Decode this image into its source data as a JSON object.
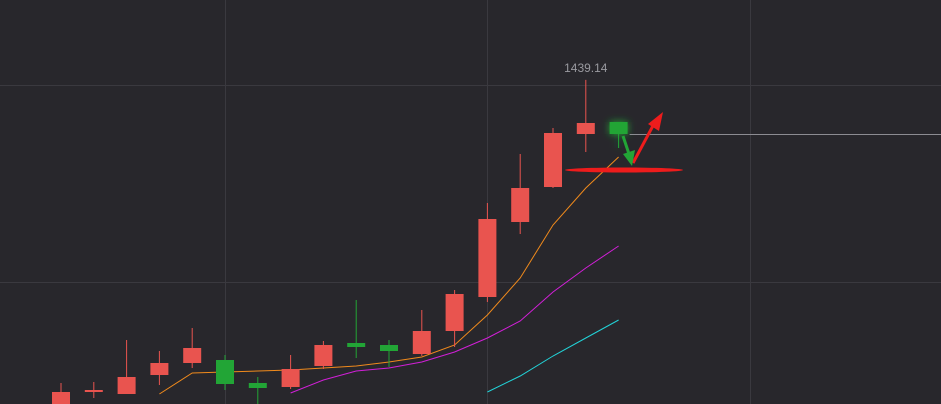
{
  "chart_data": {
    "type": "candlestick",
    "open": [
      1115,
      1127,
      1125,
      1144,
      1156,
      1159,
      1136,
      1132,
      1153,
      1176,
      1174,
      1165,
      1188,
      1222,
      1297,
      1332,
      1385,
      1397
    ],
    "high": [
      1136,
      1137,
      1179,
      1168,
      1191,
      1164,
      1142,
      1164,
      1178,
      1219,
      1179,
      1209,
      1229,
      1316,
      1365,
      1391,
      1439.14,
      1397
    ],
    "low": [
      1115,
      1121,
      1125,
      1134,
      1151,
      1129,
      1115,
      1130,
      1150,
      1161,
      1152,
      1163,
      1172,
      1217,
      1285,
      1331,
      1367,
      1371
    ],
    "close": [
      1127,
      1129,
      1142,
      1156,
      1171,
      1135,
      1131,
      1150,
      1174,
      1172,
      1168,
      1188,
      1225,
      1300,
      1331,
      1386,
      1396,
      1385
    ],
    "up_color": "#e9544f",
    "down_color": "#22a536",
    "lines": [
      {
        "color": "#f08a1c",
        "values": [
          null,
          null,
          null,
          1125,
          1146,
          1147,
          1148,
          1149,
          1151,
          1153,
          1157,
          1162,
          1174,
          1204,
          1241,
          1294,
          1331,
          1362
        ]
      },
      {
        "color": "#d21fd8",
        "values": [
          null,
          null,
          null,
          null,
          null,
          null,
          null,
          1126,
          1139,
          1148,
          1151,
          1157,
          1167,
          1181,
          1198,
          1227,
          1251,
          1273
        ]
      },
      {
        "color": "#22d3d8",
        "values": [
          null,
          null,
          null,
          null,
          null,
          null,
          null,
          null,
          null,
          null,
          null,
          null,
          null,
          1127,
          1143,
          1163,
          1181,
          1199
        ]
      }
    ],
    "ylim": [
      1115,
      1519
    ],
    "price_line": true
  }
}
